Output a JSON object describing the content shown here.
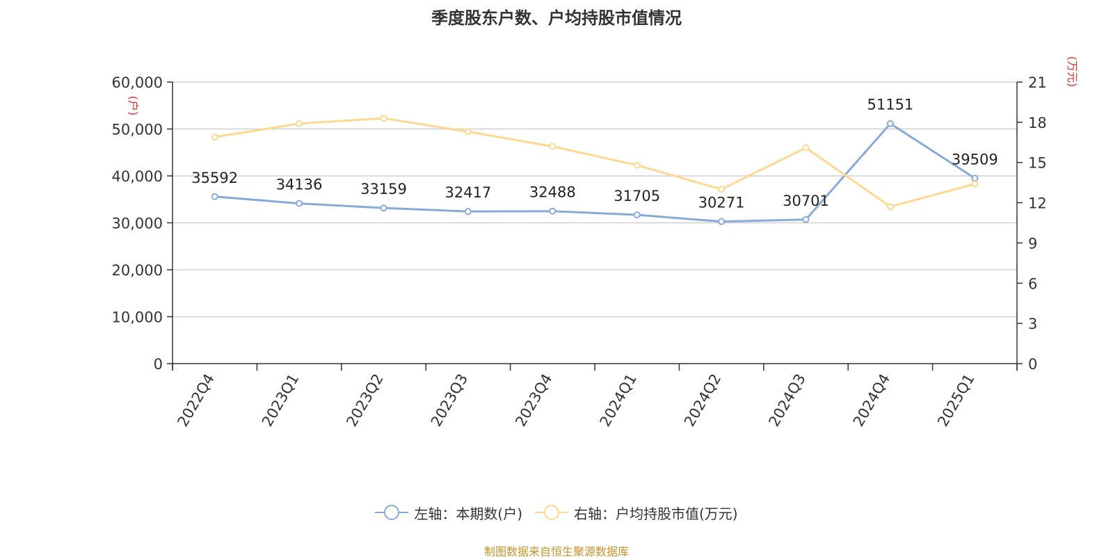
{
  "title": "季度股东户数、户均持股市值情况",
  "source_note": "制图数据来自恒生聚源数据库",
  "chart_data": {
    "type": "line",
    "categories": [
      "2022Q4",
      "2023Q1",
      "2023Q2",
      "2023Q3",
      "2023Q4",
      "2024Q1",
      "2024Q2",
      "2024Q3",
      "2024Q4",
      "2025Q1"
    ],
    "left_axis": {
      "unit": "(户)",
      "ylim": [
        0,
        60000
      ],
      "ticks": [
        "0",
        "10,000",
        "20,000",
        "30,000",
        "40,000",
        "50,000",
        "60,000"
      ]
    },
    "right_axis": {
      "unit": "(万元)",
      "ylim": [
        0,
        21
      ],
      "ticks": [
        "0",
        "3",
        "6",
        "9",
        "12",
        "15",
        "18",
        "21"
      ]
    },
    "series": [
      {
        "name": "左轴：本期数(户)",
        "axis": "left",
        "color": "#88aad8",
        "values": [
          35592,
          34136,
          33159,
          32417,
          32488,
          31705,
          30271,
          30701,
          51151,
          39509
        ],
        "labels": [
          "35592",
          "34136",
          "33159",
          "32417",
          "32488",
          "31705",
          "30271",
          "30701",
          "51151",
          "39509"
        ]
      },
      {
        "name": "右轴：户均持股市值(万元)",
        "axis": "right",
        "color": "#fdd890",
        "values": [
          16.9,
          17.9,
          18.3,
          17.3,
          16.2,
          14.8,
          13.0,
          16.1,
          11.7,
          13.4
        ]
      }
    ],
    "grid": true,
    "legend_position": "bottom"
  }
}
